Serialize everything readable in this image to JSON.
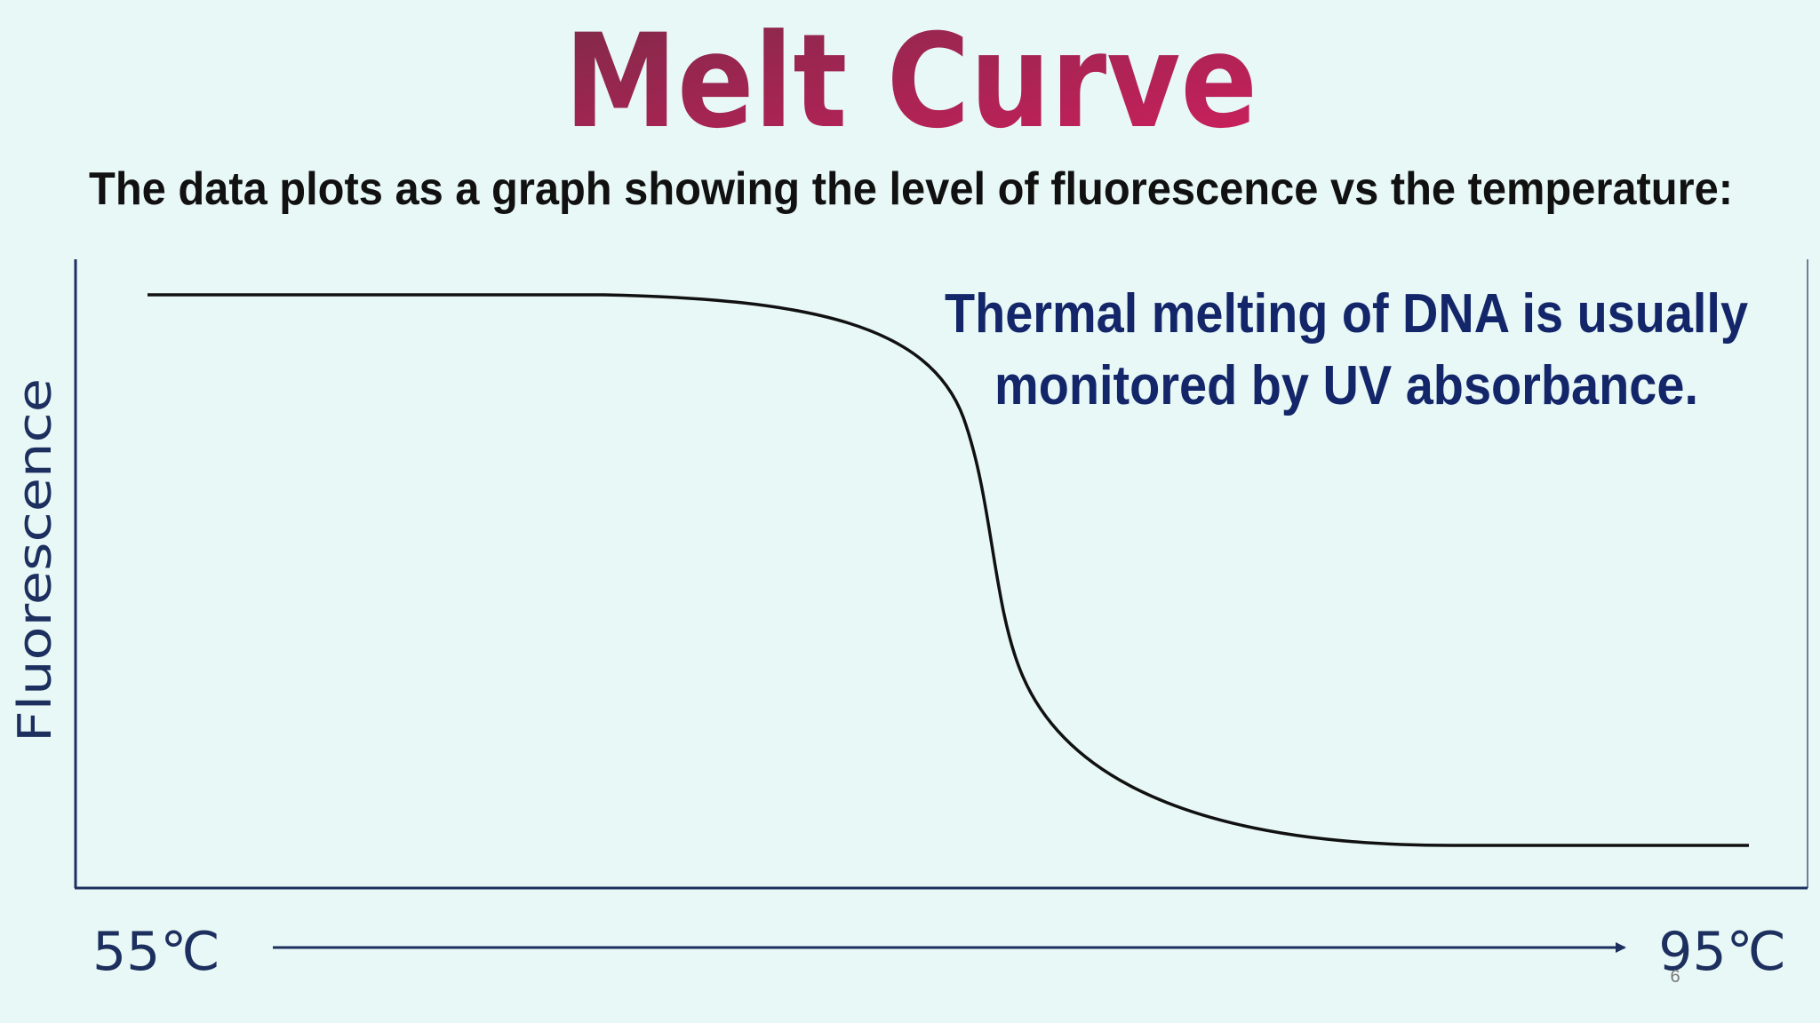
{
  "slide": {
    "title": "Melt Curve",
    "subtitle": "The data plots as a graph showing the level of fluorescence vs the temperature:",
    "note_lines": [
      "Thermal melting of DNA is usually",
      "monitored by UV absorbance."
    ],
    "y_axis_label": "Fluorescence",
    "x_start_label": "55℃",
    "x_end_label": "95℃",
    "page_number": "6"
  }
}
